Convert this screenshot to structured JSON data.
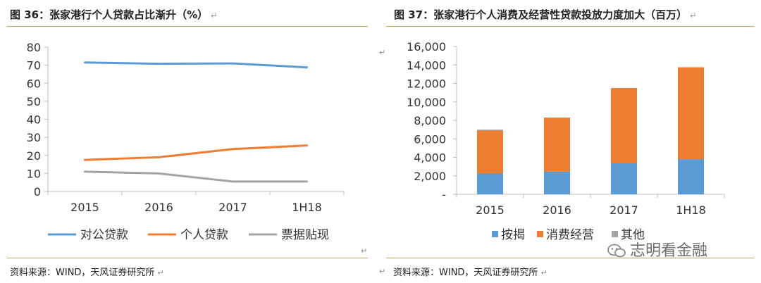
{
  "left_panel": {
    "title": "图 36：张家港行个人贷款占比渐升（%）",
    "source": "资料来源：WIND，天风证券研究所"
  },
  "right_panel": {
    "title": "图 37：张家港行个人消费及经营性贷款投放力度加大（百万）",
    "source": "资料来源：WIND，天风证券研究所"
  },
  "paragraph_mark": "↵",
  "watermark": "志明看金融",
  "colors": {
    "blue": "#5b9bd5",
    "orange": "#ed7d31",
    "gray": "#a5a5a5",
    "rule": "#c8a25a"
  },
  "chart_data": [
    {
      "type": "line",
      "title": "张家港行个人贷款占比渐升（%）",
      "categories": [
        "2015",
        "2016",
        "2017",
        "1H18"
      ],
      "series": [
        {
          "name": "对公贷款",
          "values": [
            71.5,
            70.8,
            71.0,
            68.8
          ]
        },
        {
          "name": "个人贷款",
          "values": [
            17.5,
            19.0,
            23.5,
            25.5
          ]
        },
        {
          "name": "票据贴现",
          "values": [
            11.0,
            10.0,
            5.5,
            5.5
          ]
        }
      ],
      "ylim": [
        0,
        80
      ],
      "yticks": [
        "0",
        "10",
        "20",
        "30",
        "40",
        "50",
        "60",
        "70",
        "80"
      ],
      "xlabel": "",
      "ylabel": "",
      "legend": "bottom"
    },
    {
      "type": "bar",
      "stacked": true,
      "title": "张家港行个人消费及经营性贷款投放力度加大（百万）",
      "categories": [
        "2015",
        "2016",
        "2017",
        "1H18"
      ],
      "series": [
        {
          "name": "按揭",
          "values": [
            2250,
            2450,
            3350,
            3800
          ]
        },
        {
          "name": "消费经营",
          "values": [
            4650,
            5850,
            8150,
            9950
          ]
        },
        {
          "name": "其他",
          "values": [
            100,
            0,
            0,
            0
          ]
        }
      ],
      "ylim": [
        0,
        16000
      ],
      "yticks": [
        "-",
        "2,000",
        "4,000",
        "6,000",
        "8,000",
        "10,000",
        "12,000",
        "14,000",
        "16,000"
      ],
      "xlabel": "",
      "ylabel": "",
      "legend": "bottom"
    }
  ]
}
